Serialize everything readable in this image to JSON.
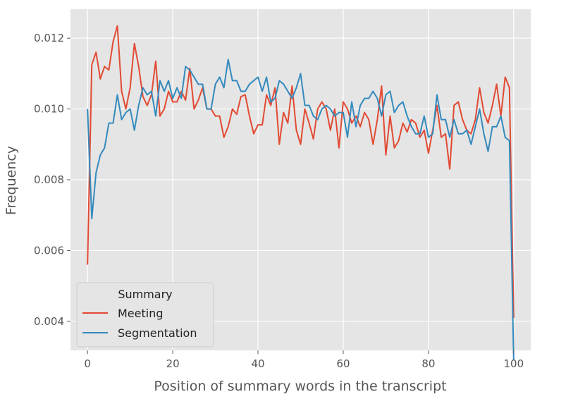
{
  "chart_data": {
    "type": "line",
    "xlabel": "Position of summary words in the transcript",
    "ylabel": "Frequency",
    "xlim": [
      -4,
      104
    ],
    "ylim": [
      0.00318,
      0.01282
    ],
    "xticks": [
      0,
      20,
      40,
      60,
      80,
      100
    ],
    "yticks": [
      0.004,
      0.006,
      0.008,
      0.01,
      0.012
    ],
    "xtick_labels": [
      "0",
      "20",
      "40",
      "60",
      "80",
      "100"
    ],
    "ytick_labels": [
      "0.004",
      "0.006",
      "0.008",
      "0.010",
      "0.012"
    ],
    "grid": true,
    "style": "ggplot",
    "legend": {
      "title": "Summary",
      "position": "lower-left"
    },
    "x": [
      0,
      1,
      2,
      3,
      4,
      5,
      6,
      7,
      8,
      9,
      10,
      11,
      12,
      13,
      14,
      15,
      16,
      17,
      18,
      19,
      20,
      21,
      22,
      23,
      24,
      25,
      26,
      27,
      28,
      29,
      30,
      31,
      32,
      33,
      34,
      35,
      36,
      37,
      38,
      39,
      40,
      41,
      42,
      43,
      44,
      45,
      46,
      47,
      48,
      49,
      50,
      51,
      52,
      53,
      54,
      55,
      56,
      57,
      58,
      59,
      60,
      61,
      62,
      63,
      64,
      65,
      66,
      67,
      68,
      69,
      70,
      71,
      72,
      73,
      74,
      75,
      76,
      77,
      78,
      79,
      80,
      81,
      82,
      83,
      84,
      85,
      86,
      87,
      88,
      89,
      90,
      91,
      92,
      93,
      94,
      95,
      96,
      97,
      98,
      99,
      100
    ],
    "series": [
      {
        "name": "Meeting",
        "color": "#e24a33",
        "values": [
          0.0056,
          0.01125,
          0.0116,
          0.01085,
          0.0112,
          0.0111,
          0.0119,
          0.01235,
          0.0105,
          0.01,
          0.0106,
          0.01185,
          0.0112,
          0.01035,
          0.0101,
          0.0104,
          0.01135,
          0.0098,
          0.01,
          0.0105,
          0.0102,
          0.0102,
          0.0105,
          0.01025,
          0.01115,
          0.01,
          0.01025,
          0.0106,
          0.01,
          0.01,
          0.0098,
          0.0098,
          0.0092,
          0.0095,
          0.01,
          0.00985,
          0.01035,
          0.0104,
          0.0098,
          0.0093,
          0.00955,
          0.00955,
          0.0104,
          0.0101,
          0.0106,
          0.009,
          0.0099,
          0.0096,
          0.01065,
          0.0094,
          0.009,
          0.01,
          0.0096,
          0.00915,
          0.01,
          0.0102,
          0.01,
          0.0094,
          0.01,
          0.0089,
          0.0102,
          0.01,
          0.0096,
          0.0098,
          0.0095,
          0.0099,
          0.0097,
          0.009,
          0.0097,
          0.01065,
          0.0087,
          0.0098,
          0.0089,
          0.0091,
          0.0096,
          0.00935,
          0.0097,
          0.0096,
          0.0092,
          0.0094,
          0.00875,
          0.0094,
          0.0101,
          0.0092,
          0.0093,
          0.0083,
          0.0101,
          0.0102,
          0.0097,
          0.0094,
          0.0093,
          0.0097,
          0.0106,
          0.0099,
          0.0096,
          0.0101,
          0.0107,
          0.0098,
          0.0109,
          0.0106,
          0.0041
        ]
      },
      {
        "name": "Segmentation",
        "color": "#348abd",
        "values": [
          0.01,
          0.0069,
          0.0082,
          0.0087,
          0.0089,
          0.0096,
          0.0096,
          0.0104,
          0.0097,
          0.0099,
          0.01,
          0.0094,
          0.0101,
          0.0106,
          0.0104,
          0.0105,
          0.0098,
          0.0108,
          0.0105,
          0.0108,
          0.0103,
          0.0106,
          0.0103,
          0.0112,
          0.0111,
          0.0109,
          0.0107,
          0.0107,
          0.01,
          0.01,
          0.0107,
          0.0109,
          0.0106,
          0.0114,
          0.0108,
          0.0108,
          0.0105,
          0.0105,
          0.0107,
          0.0108,
          0.0109,
          0.0105,
          0.0109,
          0.0102,
          0.0103,
          0.0108,
          0.0107,
          0.0105,
          0.0103,
          0.0106,
          0.011,
          0.0101,
          0.0101,
          0.0098,
          0.0097,
          0.01,
          0.0101,
          0.01,
          0.0098,
          0.0099,
          0.0099,
          0.0092,
          0.0102,
          0.0095,
          0.0101,
          0.0103,
          0.0103,
          0.0105,
          0.0103,
          0.0098,
          0.0104,
          0.0105,
          0.0099,
          0.0101,
          0.0102,
          0.0098,
          0.0095,
          0.0093,
          0.0093,
          0.0098,
          0.0092,
          0.0093,
          0.0104,
          0.0097,
          0.0097,
          0.0092,
          0.0097,
          0.0093,
          0.0093,
          0.0094,
          0.009,
          0.0095,
          0.01,
          0.0093,
          0.0088,
          0.0095,
          0.0095,
          0.0098,
          0.0092,
          0.0091,
          0.0029
        ]
      }
    ]
  }
}
